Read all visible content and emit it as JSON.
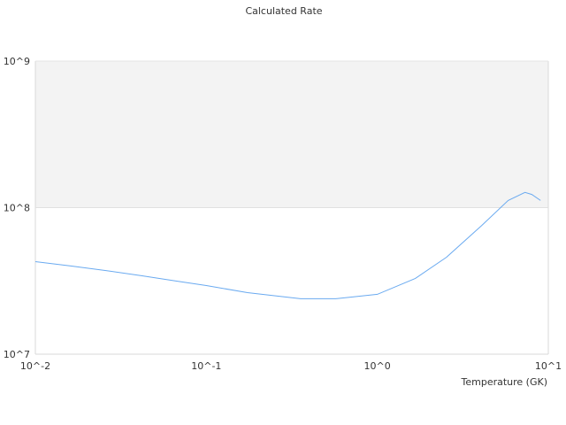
{
  "chart_data": {
    "type": "line",
    "title": "Calculated Rate",
    "xlabel": "Temperature (GK)",
    "ylabel": "",
    "x_scale": "log",
    "y_scale": "log",
    "xlim": [
      0.01,
      10
    ],
    "ylim": [
      10000000,
      1000000000
    ],
    "x_ticks": [
      {
        "value": 0.01,
        "label": "10^-2"
      },
      {
        "value": 0.1,
        "label": "10^-1"
      },
      {
        "value": 1,
        "label": "10^0"
      },
      {
        "value": 10,
        "label": "10^1"
      }
    ],
    "y_ticks": [
      {
        "value": 10000000,
        "label": "10^7"
      },
      {
        "value": 100000000,
        "label": "10^8"
      },
      {
        "value": 1000000000,
        "label": "10^9"
      }
    ],
    "grid": false,
    "shaded_band": {
      "from": 100000000,
      "to": 1000000000,
      "color": "#f3f3f3"
    },
    "line_color": "#6aaaf0",
    "series": [
      {
        "x": [
          0.01,
          0.0161,
          0.0259,
          0.0417,
          0.0671,
          0.1,
          0.174,
          0.356,
          0.571,
          1.0,
          1.67,
          2.54,
          4.09,
          5.82,
          7.3,
          8.0,
          9.0
        ],
        "y": [
          42800000,
          40000000,
          37200000,
          34300000,
          31500000,
          29400000,
          26300000,
          23900000,
          23900000,
          25600000,
          32900000,
          45900000,
          75700000,
          112000000,
          127000000,
          123000000,
          112000000
        ]
      }
    ]
  }
}
